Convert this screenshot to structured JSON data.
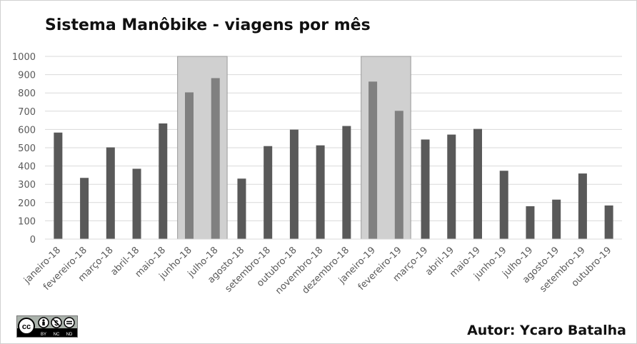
{
  "chart_data": {
    "type": "bar",
    "title": "Sistema Manôbike - viagens por mês",
    "xlabel": "",
    "ylabel": "",
    "ylim": [
      0,
      1000
    ],
    "yticks": [
      0,
      100,
      200,
      300,
      400,
      500,
      600,
      700,
      800,
      900,
      1000
    ],
    "grid": true,
    "categories": [
      "janeiro-18",
      "fevereiro-18",
      "março-18",
      "abril-18",
      "maio-18",
      "junho-18",
      "julho-18",
      "agosto-18",
      "setembro-18",
      "outubro-18",
      "novembro-18",
      "dezembro-18",
      "janeiro-19",
      "fevereiro-19",
      "março-19",
      "abril-19",
      "maio-19",
      "junho-19",
      "julho-19",
      "agosto-19",
      "setembro-19",
      "outubro-19"
    ],
    "values": [
      583,
      335,
      502,
      385,
      633,
      803,
      881,
      331,
      509,
      599,
      513,
      619,
      862,
      702,
      545,
      572,
      603,
      374,
      180,
      216,
      359,
      184
    ],
    "highlighted_ranges": [
      [
        "junho-18",
        "julho-18"
      ],
      [
        "janeiro-19",
        "fevereiro-19"
      ]
    ],
    "colors": {
      "bar": "#595959",
      "bar_highlighted": "#808080",
      "highlight_box": "#d0d0d0",
      "gridline": "#d9d9d9"
    }
  },
  "author": "Autor: Ycaro Batalha",
  "license": {
    "icon": "cc-by-nc-nd-badge",
    "labels": [
      "BY",
      "NC",
      "ND"
    ]
  }
}
